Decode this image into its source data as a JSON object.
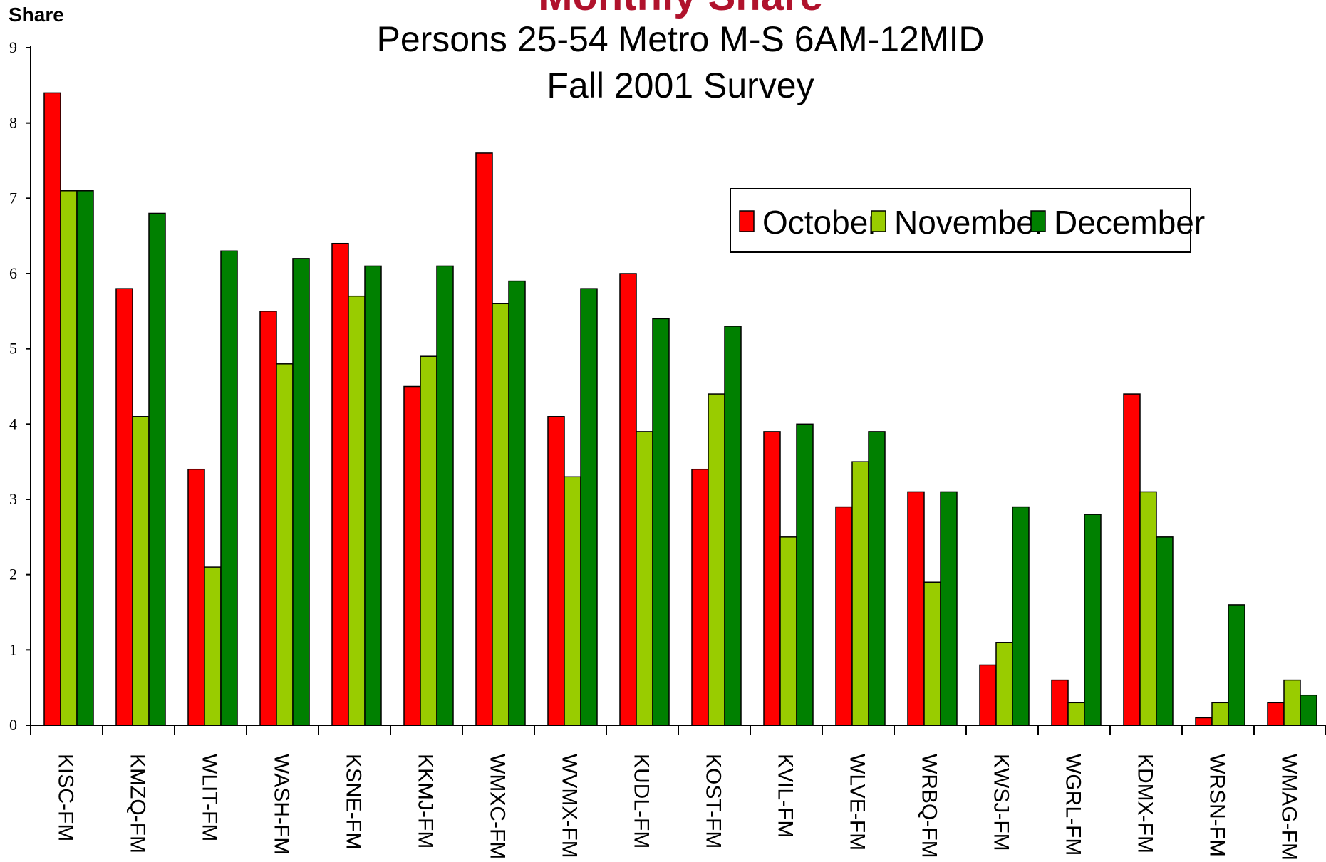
{
  "chart_data": {
    "type": "bar",
    "title": "Monthly Share",
    "subtitle_lines": [
      "Persons 25-54 Metro M-S 6AM-12MID",
      "Fall 2001 Survey"
    ],
    "ylabel": "Share",
    "xlabel": "",
    "ylim": [
      0,
      9
    ],
    "yticks": [
      "0",
      "1",
      "2",
      "3",
      "4",
      "5",
      "6",
      "7",
      "8",
      "9"
    ],
    "grid": false,
    "legend_position": "top-right",
    "categories": [
      "KISC-FM",
      "KMZQ-FM",
      "WLIT-FM",
      "WASH-FM",
      "KSNE-FM",
      "KKMJ-FM",
      "WMXC-FM",
      "WVMX-FM",
      "KUDL-FM",
      "KOST-FM",
      "KVIL-FM",
      "WLVE-FM",
      "WRBQ-FM",
      "KWSJ-FM",
      "WGRL-FM",
      "KDMX-FM",
      "WRSN-FM",
      "WMAG-FM"
    ],
    "series": [
      {
        "name": "October",
        "color": "#ff0000",
        "values": [
          8.4,
          5.8,
          3.4,
          5.5,
          6.4,
          4.5,
          7.6,
          4.1,
          6.0,
          3.4,
          3.9,
          2.9,
          3.1,
          0.8,
          0.6,
          4.4,
          0.1,
          0.3
        ]
      },
      {
        "name": "November",
        "color": "#99cc00",
        "values": [
          7.1,
          4.1,
          2.1,
          4.8,
          5.7,
          4.9,
          5.6,
          3.3,
          3.9,
          4.4,
          2.5,
          3.5,
          1.9,
          1.1,
          0.3,
          3.1,
          0.3,
          0.6
        ]
      },
      {
        "name": "December",
        "color": "#008000",
        "values": [
          7.1,
          6.8,
          6.3,
          6.2,
          6.1,
          6.1,
          5.9,
          5.8,
          5.4,
          5.3,
          4.0,
          3.9,
          3.1,
          2.9,
          2.8,
          2.5,
          1.6,
          0.4
        ]
      }
    ]
  }
}
